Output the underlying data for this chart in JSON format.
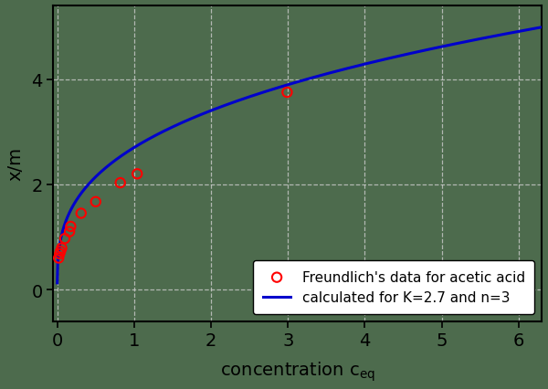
{
  "title": "",
  "xlabel": "concentration c",
  "xlabel_sub": "eq",
  "ylabel": "x/m",
  "K": 2.7,
  "n": 3,
  "x_data": [
    0.018,
    0.031,
    0.042,
    0.058,
    0.099,
    0.16,
    0.175,
    0.31,
    0.5,
    0.82,
    1.04,
    2.99
  ],
  "y_data": [
    0.6,
    0.68,
    0.73,
    0.79,
    0.97,
    1.1,
    1.2,
    1.45,
    1.67,
    2.03,
    2.2,
    3.75
  ],
  "scatter_color": "#ff0000",
  "line_color": "#0000cc",
  "bg_color": "#4d6b4d",
  "outer_bg": "#4d6b4d",
  "xlim": [
    -0.05,
    6.3
  ],
  "ylim": [
    -0.6,
    5.4
  ],
  "xticks": [
    0,
    1,
    2,
    3,
    4,
    5,
    6
  ],
  "yticks": [
    0,
    2,
    4
  ],
  "legend_label_scatter": "Freundlich's data for acetic acid",
  "legend_label_line": "calculated for K=2.7 and n=3",
  "scatter_size": 55,
  "scatter_linewidth": 1.5,
  "line_width": 2.2,
  "tick_labelsize": 14,
  "label_fontsize": 14,
  "legend_fontsize": 11
}
